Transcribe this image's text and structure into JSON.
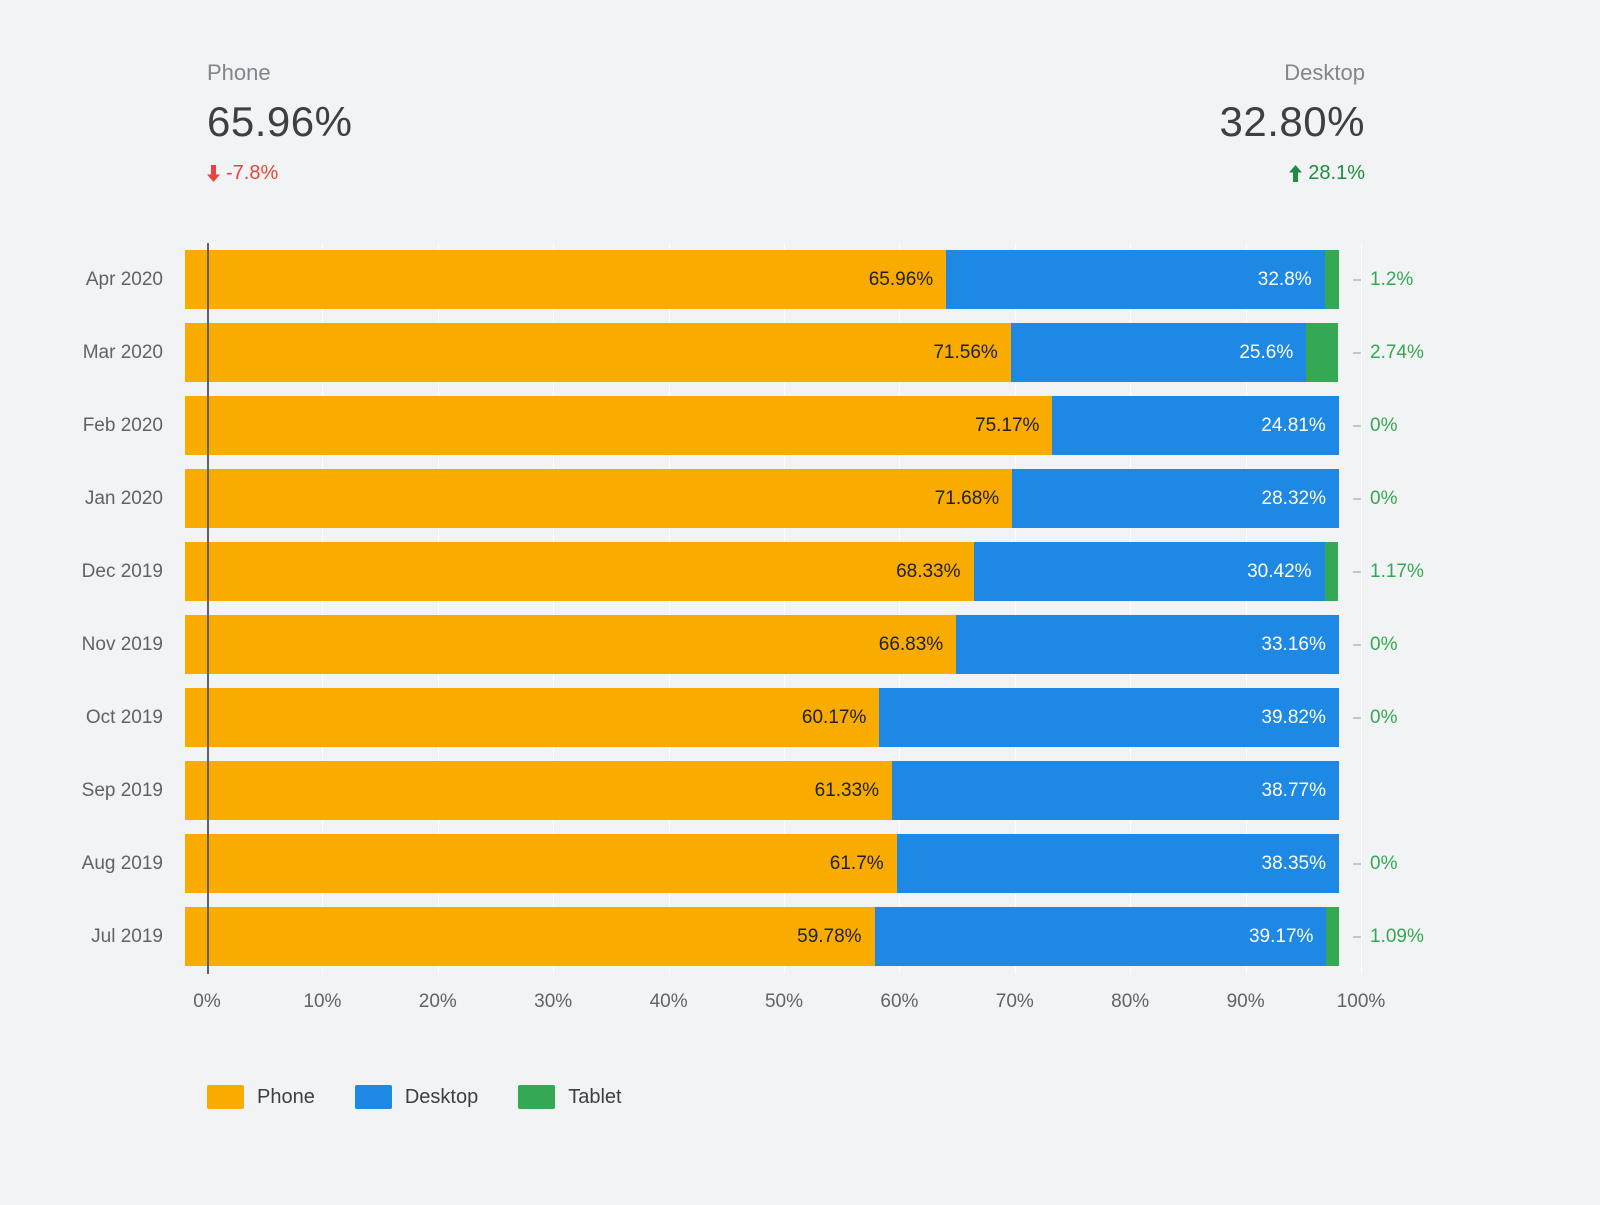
{
  "page": {
    "background": "#f1f3f4"
  },
  "summary": {
    "phone": {
      "label": "Phone",
      "value": "65.96%",
      "change": "-7.8%",
      "direction": "down",
      "change_color": "#e8463c"
    },
    "desktop": {
      "label": "Desktop",
      "value": "32.80%",
      "change": "28.1%",
      "direction": "up",
      "change_color": "#1e8e3e"
    }
  },
  "chart_data": {
    "type": "bar",
    "orientation": "horizontal",
    "stacked": true,
    "grid": true,
    "legend_position": "bottom",
    "xlim": [
      0,
      100
    ],
    "categories": [
      "Apr 2020",
      "Mar 2020",
      "Feb 2020",
      "Jan 2020",
      "Dec 2019",
      "Nov 2019",
      "Oct 2019",
      "Sep 2019",
      "Aug 2019",
      "Jul 2019"
    ],
    "series": [
      {
        "name": "Phone",
        "color": "#f9ab00",
        "values": [
          65.96,
          71.56,
          75.17,
          71.68,
          68.33,
          66.83,
          60.17,
          61.33,
          61.7,
          59.78
        ],
        "labels": [
          "65.96%",
          "71.56%",
          "75.17%",
          "71.68%",
          "68.33%",
          "66.83%",
          "60.17%",
          "61.33%",
          "61.7%",
          "59.78%"
        ]
      },
      {
        "name": "Desktop",
        "color": "#1e88e5",
        "values": [
          32.8,
          25.6,
          24.81,
          28.32,
          30.42,
          33.16,
          39.82,
          38.77,
          38.35,
          39.17
        ],
        "labels": [
          "32.8%",
          "25.6%",
          "24.81%",
          "28.32%",
          "30.42%",
          "33.16%",
          "39.82%",
          "38.77%",
          "38.35%",
          "39.17%"
        ]
      },
      {
        "name": "Tablet",
        "color": "#34a853",
        "values": [
          1.2,
          2.74,
          0,
          0,
          1.17,
          0,
          0,
          0,
          0,
          1.09
        ],
        "labels": [
          "1.2%",
          "2.74%",
          "0%",
          "0%",
          "1.17%",
          "0%",
          "0%",
          "",
          "0%",
          "1.09%"
        ]
      }
    ],
    "x_ticks": [
      "0%",
      "10%",
      "20%",
      "30%",
      "40%",
      "50%",
      "60%",
      "70%",
      "80%",
      "90%",
      "100%"
    ],
    "legend": [
      {
        "label": "Phone",
        "color": "#f9ab00"
      },
      {
        "label": "Desktop",
        "color": "#1e88e5"
      },
      {
        "label": "Tablet",
        "color": "#34a853"
      }
    ]
  }
}
